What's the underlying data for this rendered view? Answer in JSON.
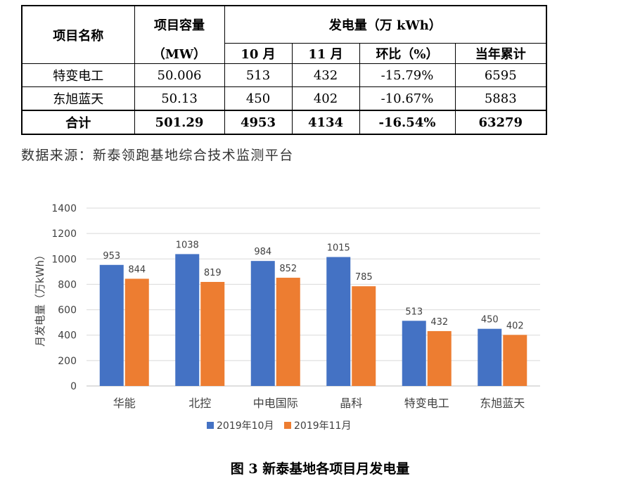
{
  "table": {
    "head": {
      "col_name": "项目名称",
      "col_capacity": "项目容量",
      "col_capacity_unit": "（MW）",
      "col_generation": "发电量（万 kWh）",
      "col_oct": "10 月",
      "col_nov": "11 月",
      "col_mom": "环比（%）",
      "col_ytd": "当年累计"
    },
    "rows": [
      {
        "name": "特变电工",
        "capacity": "50.006",
        "oct": "513",
        "nov": "432",
        "mom": "-15.79%",
        "ytd": "6595"
      },
      {
        "name": "东旭蓝天",
        "capacity": "50.13",
        "oct": "450",
        "nov": "402",
        "mom": "-10.67%",
        "ytd": "5883"
      }
    ],
    "total": {
      "name": "合计",
      "capacity": "501.29",
      "oct": "4953",
      "nov": "4134",
      "mom": "-16.54%",
      "ytd": "63279"
    }
  },
  "source_note": "数据来源：新泰领跑基地综合技术监测平台",
  "figure_caption": "图 3   新泰基地各项目月发电量",
  "colors": {
    "series_oct": "#4472C4",
    "series_nov": "#ED7D31",
    "grid": "#d9d9d9",
    "axis_text": "#404040"
  },
  "chart_data": {
    "type": "bar",
    "categories": [
      "华能",
      "北控",
      "中电国际",
      "晶科",
      "特变电工",
      "东旭蓝天"
    ],
    "series": [
      {
        "name": "2019年10月",
        "values": [
          953,
          1038,
          984,
          1015,
          513,
          450
        ]
      },
      {
        "name": "2019年11月",
        "values": [
          844,
          819,
          852,
          785,
          432,
          402
        ]
      }
    ],
    "title": "",
    "xlabel": "",
    "ylabel": "月发电量（万kWh）",
    "ylim": [
      0,
      1400
    ],
    "yticks": [
      0,
      200,
      400,
      600,
      800,
      1000,
      1200,
      1400
    ],
    "grid": true,
    "legend": "bottom",
    "data_labels": true
  }
}
